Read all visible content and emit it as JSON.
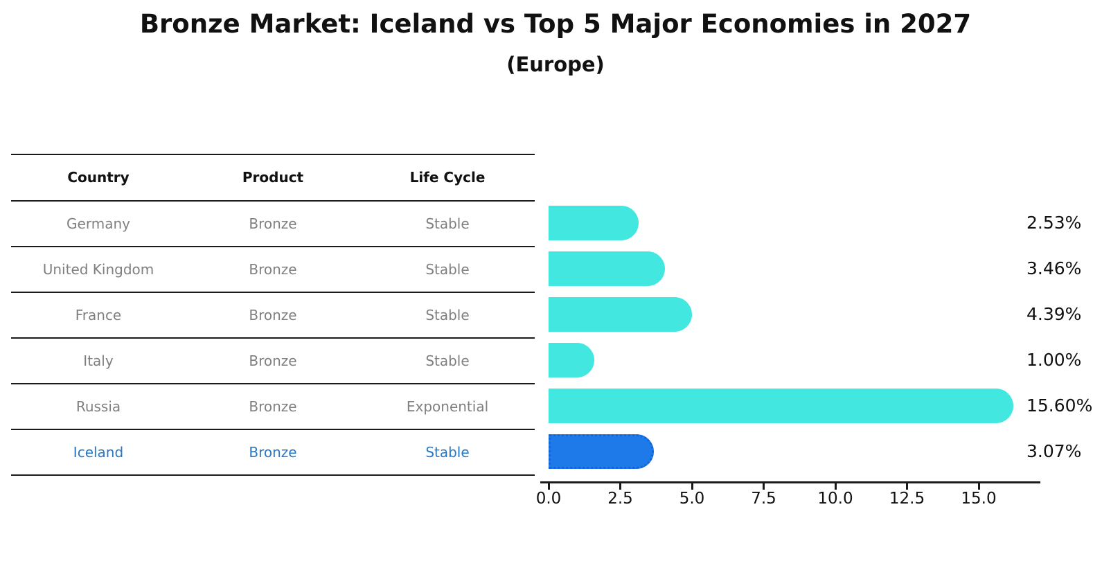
{
  "title": "Bronze Market: Iceland vs Top 5 Major Economies in 2027",
  "subtitle": "(Europe)",
  "table": {
    "headers": [
      "Country",
      "Product",
      "Life Cycle"
    ],
    "rows": [
      {
        "country": "Germany",
        "product": "Bronze",
        "life_cycle": "Stable",
        "highlight": false
      },
      {
        "country": "United Kingdom",
        "product": "Bronze",
        "life_cycle": "Stable",
        "highlight": false
      },
      {
        "country": "France",
        "product": "Bronze",
        "life_cycle": "Stable",
        "highlight": false
      },
      {
        "country": "Italy",
        "product": "Bronze",
        "life_cycle": "Stable",
        "highlight": false
      },
      {
        "country": "Russia",
        "product": "Bronze",
        "life_cycle": "Exponential",
        "highlight": false
      },
      {
        "country": "Iceland",
        "product": "Bronze",
        "life_cycle": "Stable",
        "highlight": true
      }
    ]
  },
  "chart_data": {
    "type": "bar",
    "orientation": "horizontal",
    "title": "Bronze Market: Iceland vs Top 5 Major Economies in 2027 (Europe)",
    "categories": [
      "Germany",
      "United Kingdom",
      "France",
      "Italy",
      "Russia",
      "Iceland"
    ],
    "values": [
      2.53,
      3.46,
      4.39,
      1.0,
      15.6,
      3.07
    ],
    "value_labels": [
      "2.53%",
      "3.46%",
      "4.39%",
      "1.00%",
      "15.60%",
      "3.07%"
    ],
    "x_ticks": [
      "0.0",
      "2.5",
      "5.0",
      "7.5",
      "10.0",
      "12.5",
      "15.0"
    ],
    "xlim": [
      0,
      17.2
    ],
    "grid": false,
    "legend": false,
    "highlight_index": 5
  },
  "colors": {
    "bar_color": "#42E8E0",
    "highlight_bar": "#1E7AE8",
    "highlight_border": "#1463D8",
    "highlight_text": "#2878C8",
    "text_gray": "#7F7F7F",
    "text_black": "#111111",
    "line_color": "#1A1A1A"
  }
}
